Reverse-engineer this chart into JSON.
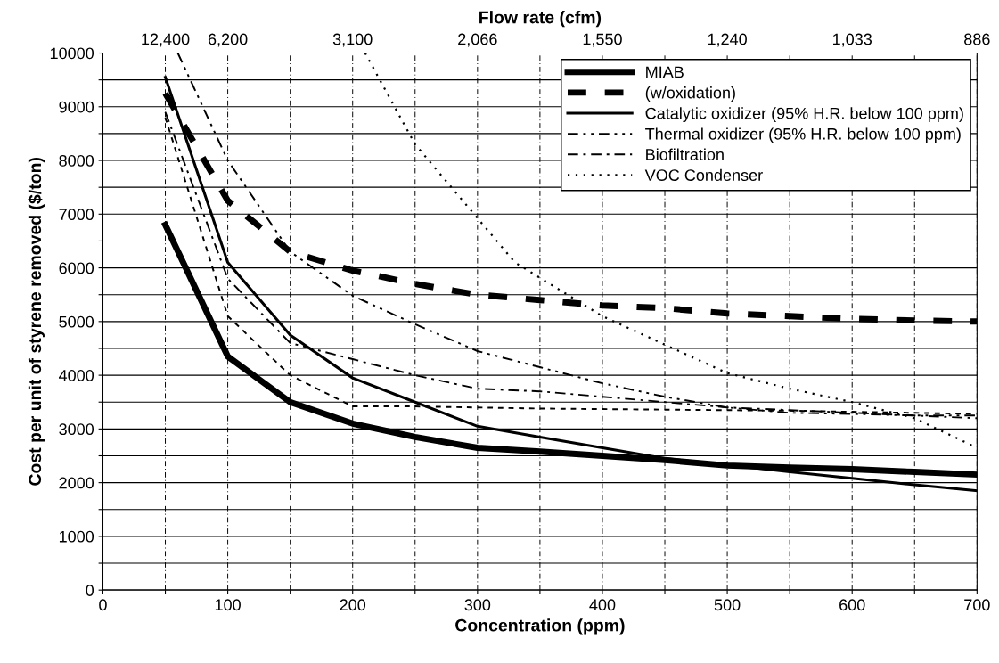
{
  "chart_data": {
    "type": "line",
    "xlabel": "Concentration (ppm)",
    "ylabel": "Cost per unit of styrene removed ($/ton)",
    "title": "Flow rate (cfm)",
    "xlim": [
      0,
      700
    ],
    "ylim": [
      0,
      10000
    ],
    "xticks": [
      0,
      {
        "value": 50,
        "label": null
      },
      100,
      {
        "value": 150,
        "label": null
      },
      200,
      {
        "value": 250,
        "label": null
      },
      300,
      {
        "value": 350,
        "label": null
      },
      400,
      {
        "value": 450,
        "label": null
      },
      500,
      {
        "value": 550,
        "label": null
      },
      600,
      {
        "value": 650,
        "label": null
      },
      700
    ],
    "yticks": [
      0,
      {
        "value": 500,
        "label": null
      },
      1000,
      {
        "value": 1500,
        "label": null
      },
      2000,
      {
        "value": 2500,
        "label": null
      },
      3000,
      {
        "value": 3500,
        "label": null
      },
      4000,
      {
        "value": 4500,
        "label": null
      },
      5000,
      {
        "value": 5500,
        "label": null
      },
      6000,
      {
        "value": 6500,
        "label": null
      },
      7000,
      {
        "value": 7500,
        "label": null
      },
      8000,
      {
        "value": 8500,
        "label": null
      },
      9000,
      {
        "value": 9500,
        "label": null
      },
      10000
    ],
    "annotations": [
      "12,400",
      "6,200",
      "3,100",
      "2,066",
      "1,550",
      "1,240",
      "1,033",
      "886"
    ],
    "grid": true,
    "legend": "top right",
    "x": [
      50,
      100,
      150,
      200,
      250,
      300,
      350,
      400,
      450,
      500,
      550,
      600,
      650,
      700
    ],
    "series": [
      {
        "name": "MIAB",
        "color": "#000000",
        "line_style": "solid",
        "values": [
          6800,
          4350,
          3500,
          3100,
          2850,
          2650,
          2580,
          2500,
          2420,
          2320,
          2280,
          2250,
          2200,
          2150
        ]
      },
      {
        "name": "(w/oxidation)",
        "color": "#000000",
        "line_style": "dashed",
        "values": [
          9250,
          7250,
          6300,
          5950,
          5700,
          5500,
          5400,
          5300,
          5250,
          5150,
          5100,
          5050,
          5020,
          5000
        ]
      },
      {
        "name": "Catalytic oxidizer (95% H.R. below 100 ppm)",
        "color": "#000000",
        "line_style": "solid",
        "values": [
          9550,
          6100,
          4750,
          3950,
          3500,
          3050,
          2850,
          2650,
          2450,
          2330,
          2200,
          2080,
          1960,
          1850
        ]
      },
      {
        "name": "Thermal oxidizer (95% H.R. below 100 ppm)",
        "color": "#000000",
        "line_style": "dashdotdot",
        "x": [
          60,
          100,
          150,
          200,
          250,
          300,
          350,
          400,
          450,
          500,
          550,
          600,
          650,
          700
        ],
        "values": [
          10000,
          8000,
          6300,
          5480,
          4950,
          4450,
          4150,
          3850,
          3600,
          3400,
          3300,
          3280,
          3250,
          3250
        ]
      },
      {
        "name": "Biofiltration",
        "color": "#000000",
        "line_style": "dashdot",
        "values": [
          8900,
          5800,
          4600,
          4300,
          4000,
          3750,
          3700,
          3600,
          3500,
          3400,
          3350,
          3300,
          3250,
          3200
        ]
      },
      {
        "color": "#000000",
        "line_style": "dashed",
        "values": [
          8800,
          5100,
          4000,
          3420,
          3420,
          3400,
          3380,
          3370,
          3360,
          3350,
          3340,
          3320,
          3300,
          3280
        ]
      },
      {
        "name": "VOC Condenser",
        "color": "#000000",
        "line_style": "dotted",
        "x": [
          210,
          250,
          330,
          400,
          450,
          500,
          550,
          600,
          650,
          700
        ],
        "values": [
          10000,
          8300,
          6100,
          5100,
          4570,
          4040,
          3750,
          3500,
          3200,
          2650
        ]
      }
    ]
  }
}
